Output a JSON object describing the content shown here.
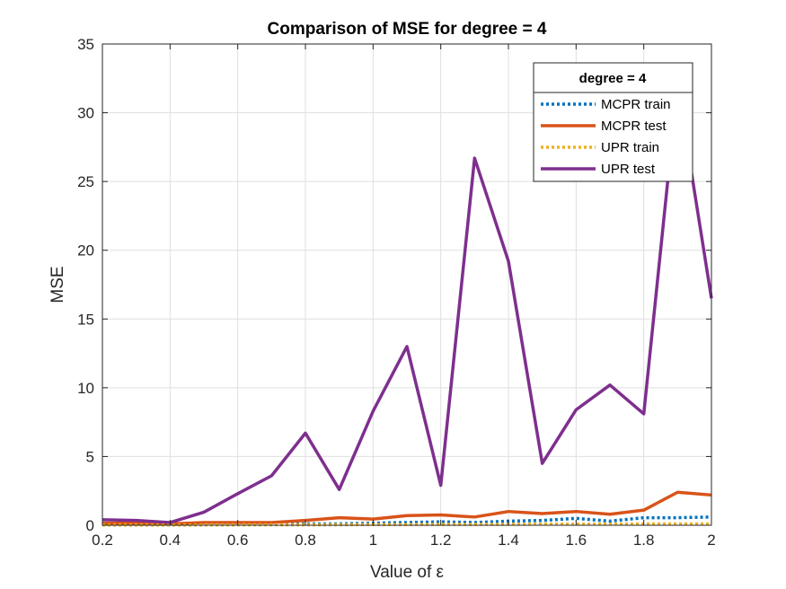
{
  "chart_data": {
    "type": "line",
    "title": "Comparison of MSE for degree = 4",
    "xlabel": "Value of ε",
    "ylabel": "MSE",
    "xlim": [
      0.2,
      2
    ],
    "ylim": [
      0,
      35
    ],
    "xticks": [
      "0.2",
      "0.4",
      "0.6",
      "0.8",
      "1",
      "1.2",
      "1.4",
      "1.6",
      "1.8",
      "2"
    ],
    "yticks": [
      "0",
      "5",
      "10",
      "15",
      "20",
      "25",
      "30",
      "35"
    ],
    "grid": true,
    "legend": {
      "title": "degree = 4",
      "position": "top-right"
    },
    "x": [
      0.2,
      0.3,
      0.4,
      0.5,
      0.6,
      0.7,
      0.8,
      0.9,
      1.0,
      1.1,
      1.2,
      1.3,
      1.4,
      1.5,
      1.6,
      1.7,
      1.8,
      1.9,
      2.0
    ],
    "series": [
      {
        "name": "MCPR train",
        "color": "#0072BD",
        "style": "dotted",
        "values": [
          0.05,
          0.05,
          0.05,
          0.05,
          0.08,
          0.08,
          0.1,
          0.1,
          0.15,
          0.2,
          0.25,
          0.2,
          0.3,
          0.35,
          0.5,
          0.3,
          0.55,
          0.55,
          0.6
        ]
      },
      {
        "name": "MCPR test",
        "color": "#D95319",
        "style": "solid",
        "values": [
          0.15,
          0.15,
          0.1,
          0.2,
          0.2,
          0.2,
          0.35,
          0.55,
          0.45,
          0.7,
          0.75,
          0.6,
          1.0,
          0.85,
          1.0,
          0.8,
          1.1,
          2.4,
          2.2
        ]
      },
      {
        "name": "UPR train",
        "color": "#EDB120",
        "style": "dotted",
        "values": [
          0.02,
          0.02,
          0.02,
          0.02,
          0.03,
          0.03,
          0.03,
          0.04,
          0.05,
          0.05,
          0.06,
          0.06,
          0.07,
          0.08,
          0.08,
          0.08,
          0.1,
          0.1,
          0.1
        ]
      },
      {
        "name": "UPR test",
        "color": "#7E2F8E",
        "style": "solid",
        "values": [
          0.4,
          0.35,
          0.2,
          0.95,
          2.3,
          3.6,
          6.7,
          2.6,
          8.3,
          13.0,
          2.9,
          26.7,
          19.2,
          4.5,
          8.4,
          10.2,
          8.1,
          32.0,
          16.5
        ]
      }
    ]
  }
}
